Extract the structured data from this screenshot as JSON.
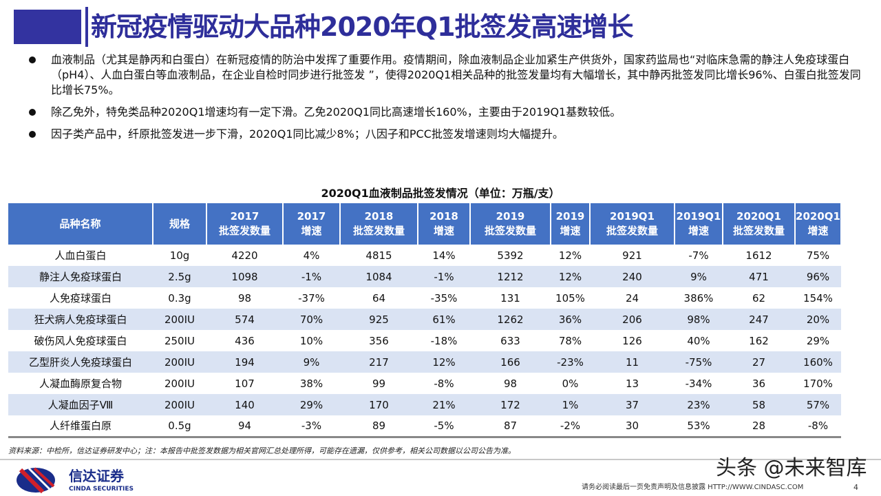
{
  "title": "新冠疫情驱动大品种2020年Q1批签发高速增长",
  "bullets": [
    "血液制品（尤其是静丙和白蛋白）在新冠疫情的防治中发挥了重要作用。疫情期间，除血液制品企业加紧生产供货外，国家药监局也“对临床急需的静注人免疫球蛋白（pH4）、人血白蛋白等血液制品，在企业自检时同步进行批签发 ”，使得2020Q1相关品种的批签发量均有大幅增长，其中静丙批签发同比增长96%、白蛋白批签发同比增长75%。",
    "除乙免外，特免类品种2020Q1增速均有一定下滑。乙免2020Q1同比高速增长160%，主要由于2019Q1基数较低。",
    "因子类产品中，纤原批签发进一步下滑，2020Q1同比减少8%；八因子和PCC批签发增速则均大幅提升。"
  ],
  "table": {
    "caption": "2020Q1血液制品批签发情况（单位：万瓶/支）",
    "headers": [
      [
        "品种名称",
        ""
      ],
      [
        "规格",
        ""
      ],
      [
        "2017",
        "批签发数量"
      ],
      [
        "2017",
        "增速"
      ],
      [
        "2018",
        "批签发数量"
      ],
      [
        "2018",
        "增速"
      ],
      [
        "2019",
        "批签发数量"
      ],
      [
        "2019",
        "增速"
      ],
      [
        "2019Q1",
        "批签发数量"
      ],
      [
        "2019Q1",
        "增速"
      ],
      [
        "2020Q1",
        "批签发数量"
      ],
      [
        "2020Q1",
        "增速"
      ]
    ],
    "rows": [
      [
        "人血白蛋白",
        "10g",
        "4220",
        "4%",
        "4815",
        "14%",
        "5392",
        "12%",
        "921",
        "-7%",
        "1612",
        "75%"
      ],
      [
        "静注人免疫球蛋白",
        "2.5g",
        "1098",
        "-1%",
        "1084",
        "-1%",
        "1212",
        "12%",
        "240",
        "9%",
        "471",
        "96%"
      ],
      [
        "人免疫球蛋白",
        "0.3g",
        "98",
        "-37%",
        "64",
        "-35%",
        "131",
        "105%",
        "24",
        "386%",
        "62",
        "154%"
      ],
      [
        "狂犬病人免疫球蛋白",
        "200IU",
        "574",
        "70%",
        "925",
        "61%",
        "1262",
        "36%",
        "206",
        "98%",
        "247",
        "20%"
      ],
      [
        "破伤风人免疫球蛋白",
        "250IU",
        "436",
        "10%",
        "356",
        "-18%",
        "633",
        "78%",
        "126",
        "40%",
        "162",
        "29%"
      ],
      [
        "乙型肝炎人免疫球蛋白",
        "200IU",
        "194",
        "9%",
        "217",
        "12%",
        "166",
        "-23%",
        "11",
        "-75%",
        "27",
        "160%"
      ],
      [
        "人凝血酶原复合物",
        "200IU",
        "107",
        "38%",
        "99",
        "-8%",
        "98",
        "0%",
        "13",
        "-34%",
        "36",
        "170%"
      ],
      [
        "人凝血因子Ⅷ",
        "200IU",
        "140",
        "29%",
        "170",
        "21%",
        "172",
        "1%",
        "37",
        "23%",
        "58",
        "57%"
      ],
      [
        "人纤维蛋白原",
        "0.5g",
        "94",
        "-3%",
        "89",
        "-5%",
        "87",
        "-2%",
        "30",
        "53%",
        "28",
        "-8%"
      ]
    ]
  },
  "source": "资料来源：中检所，信达证券研发中心；注：本报告中批签发数据为相关官网汇总处理所得，可能存在遗漏，仅供参考，相关公司数据以公司公告为准。",
  "footer": {
    "logo_cn": "信达证券",
    "logo_en": "CINDA SECURITIES",
    "watermark": "头条 @未来智库",
    "disclaimer": "请务必阅读最后一页免责声明及信息披露  HTTP://WWW.CINDASC.COM",
    "page": "4"
  },
  "colors": {
    "title": "#2e2e9a",
    "header": "#4472c4",
    "alt_row": "#dae3f3"
  }
}
